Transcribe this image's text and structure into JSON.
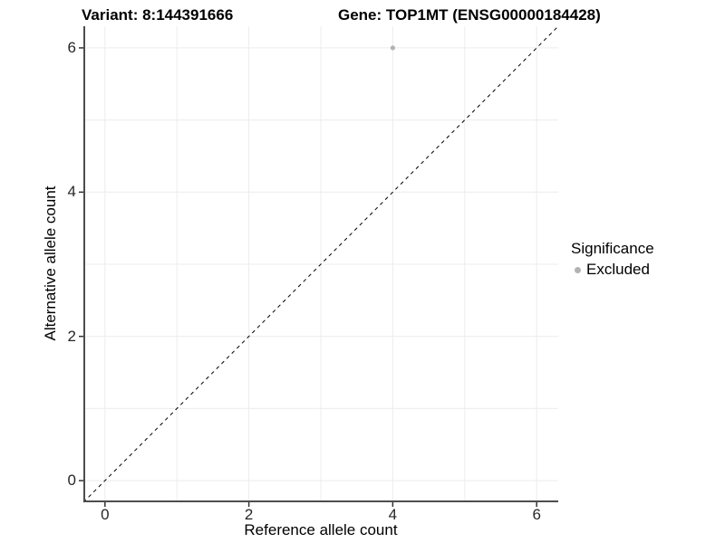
{
  "titles": {
    "left": "Variant: 8:144391666",
    "right": "Gene: TOP1MT (ENSG00000184428)"
  },
  "legend": {
    "title": "Significance",
    "items": [
      {
        "label": "Excluded",
        "color": "#b3b3b3"
      }
    ]
  },
  "chart_data": {
    "type": "scatter",
    "title_left": "Variant: 8:144391666",
    "title_right": "Gene: TOP1MT (ENSG00000184428)",
    "xlabel": "Reference allele count",
    "ylabel": "Alternative allele count",
    "xlim": [
      -0.3,
      6.3
    ],
    "ylim": [
      -0.3,
      6.3
    ],
    "xticks": [
      0,
      2,
      4,
      6
    ],
    "yticks": [
      0,
      2,
      4,
      6
    ],
    "gridlines": [
      0,
      1,
      2,
      3,
      4,
      5,
      6
    ],
    "grid": true,
    "points": [
      {
        "x": 4,
        "y": 6,
        "significance": "Excluded",
        "color": "#b3b3b3"
      }
    ],
    "reference_line": {
      "kind": "identity",
      "style": "dashed",
      "color": "#000000"
    },
    "legend_position": "right",
    "colors": {
      "grid": "#ececec",
      "axis_line": "#4d4d4d",
      "tick_mark": "#333333",
      "point": "#b3b3b3"
    }
  }
}
